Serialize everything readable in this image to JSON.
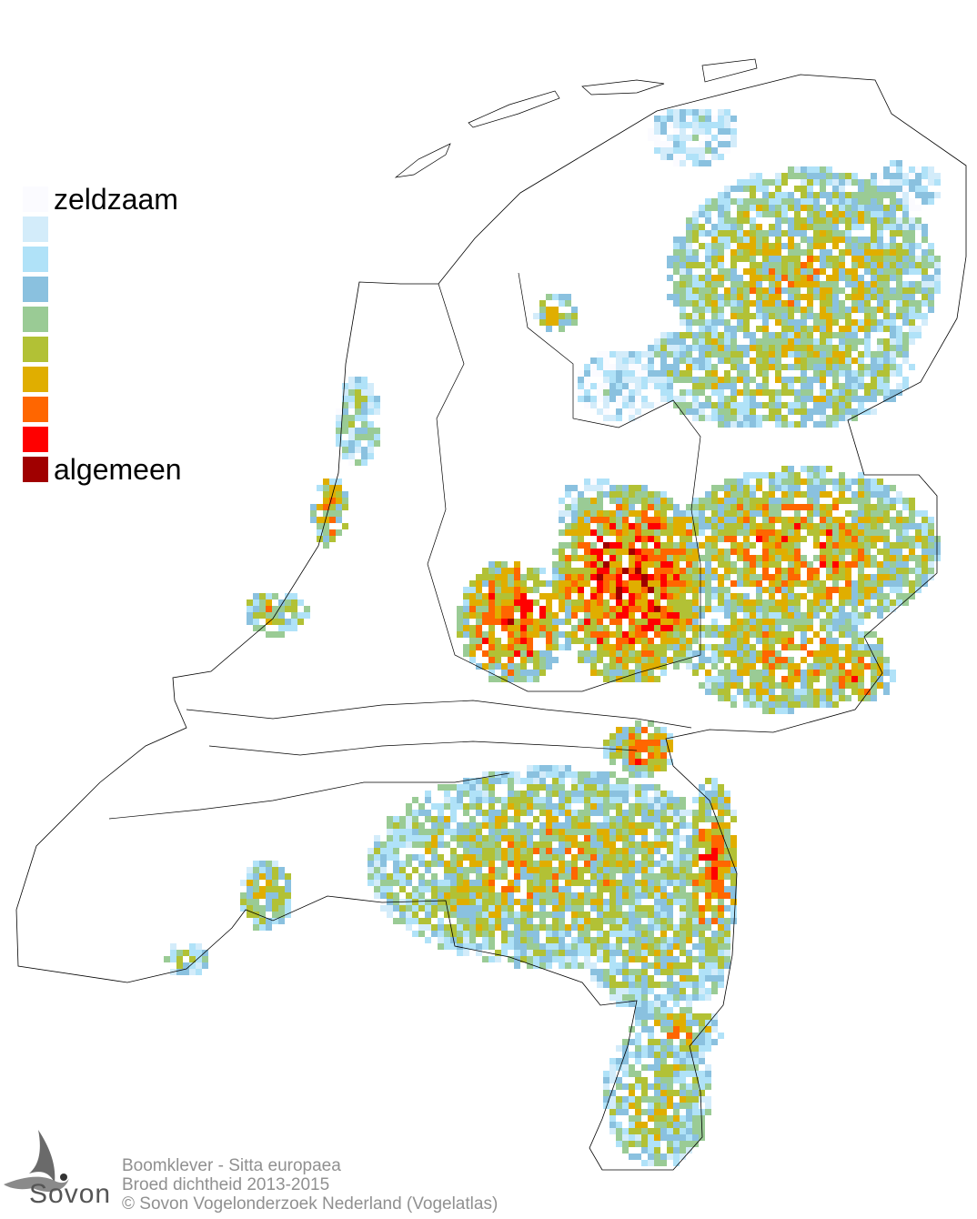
{
  "legend": {
    "items": [
      {
        "color": "#fbfbff",
        "label": "zeldzaam"
      },
      {
        "color": "#d3ecfa",
        "label": ""
      },
      {
        "color": "#b0e2f8",
        "label": ""
      },
      {
        "color": "#8ac1df",
        "label": ""
      },
      {
        "color": "#9acb95",
        "label": ""
      },
      {
        "color": "#b2c135",
        "label": ""
      },
      {
        "color": "#e0ae00",
        "label": ""
      },
      {
        "color": "#ff6600",
        "label": ""
      },
      {
        "color": "#ff0000",
        "label": ""
      },
      {
        "color": "#a00000",
        "label": "algemeen"
      }
    ]
  },
  "caption": {
    "line1": "Boomklever - Sitta europaea",
    "line2": "Broed dichtheid 2013-2015",
    "line3": "© Sovon Vogelonderzoek Nederland (Vogelatlas)"
  },
  "logo": {
    "text": "Sovon",
    "icon": "swallow-icon"
  }
}
